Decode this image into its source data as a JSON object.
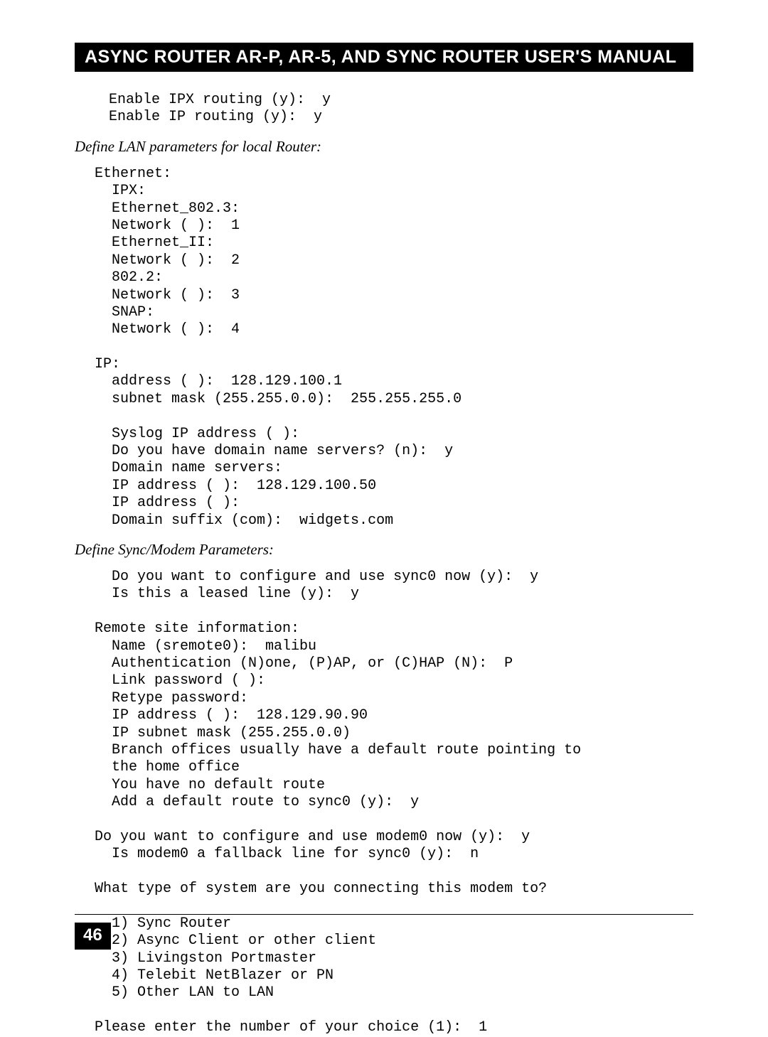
{
  "header": {
    "title": "ASYNC ROUTER AR-P, AR-5, AND SYNC ROUTER USER'S MANUAL"
  },
  "block1": {
    "text": "Enable IPX routing (y):  y\nEnable IP routing (y):  y"
  },
  "section1": {
    "title": "Define LAN parameters for local Router:"
  },
  "block2": {
    "text": "Ethernet:\n  IPX:\n  Ethernet_802.3:\n  Network ( ):  1\n  Ethernet_II:\n  Network ( ):  2\n  802.2:\n  Network ( ):  3\n  SNAP:\n  Network ( ):  4\n\nIP:\n  address ( ):  128.129.100.1\n  subnet mask (255.255.0.0):  255.255.255.0\n\n  Syslog IP address ( ):\n  Do you have domain name servers? (n):  y\n  Domain name servers:\n  IP address ( ):  128.129.100.50\n  IP address ( ):\n  Domain suffix (com):  widgets.com"
  },
  "section2": {
    "title": "Define Sync/Modem Parameters:"
  },
  "block3": {
    "text": "  Do you want to configure and use sync0 now (y):  y\n  Is this a leased line (y):  y\n\nRemote site information:\n  Name (sremote0):  malibu\n  Authentication (N)one, (P)AP, or (C)HAP (N):  P\n  Link password ( ):\n  Retype password:\n  IP address ( ):  128.129.90.90\n  IP subnet mask (255.255.0.0)\n  Branch offices usually have a default route pointing to\n  the home office\n  You have no default route\n  Add a default route to sync0 (y):  y\n\nDo you want to configure and use modem0 now (y):  y\n  Is modem0 a fallback line for sync0 (y):  n\n\nWhat type of system are you connecting this modem to?\n\n  1) Sync Router\n  2) Async Client or other client\n  3) Livingston Portmaster\n  4) Telebit NetBlazer or PN\n  5) Other LAN to LAN\n\nPlease enter the number of your choice (1):  1"
  },
  "footer": {
    "page": "46"
  }
}
